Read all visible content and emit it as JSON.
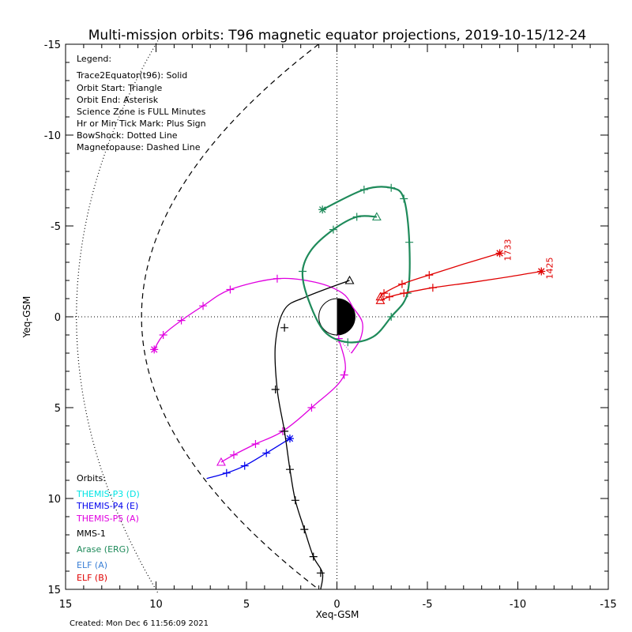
{
  "chart_data": {
    "type": "line",
    "title": "Multi-mission orbits: T96 magnetic equator projections, 2019-10-15/12-24",
    "xlabel": "Xeq-GSM",
    "ylabel": "Yeq-GSM",
    "xlim": [
      15,
      -15
    ],
    "ylim": [
      -15,
      15
    ],
    "x_ticks": [
      15,
      10,
      5,
      0,
      -5,
      -10,
      -15
    ],
    "y_ticks": [
      -15,
      -10,
      -5,
      0,
      5,
      10,
      15
    ],
    "legend": {
      "title": "Legend:",
      "items": [
        "Trace2Equator(t96): Solid",
        "Orbit Start: Triangle",
        "Orbit End: Asterisk",
        "Science Zone is FULL Minutes",
        "Hr or Min Tick Mark: Plus Sign",
        "BowShock: Dotted Line",
        "Magnetopause: Dashed Line"
      ]
    },
    "orbits_legend": {
      "title": "Orbits:",
      "items": [
        {
          "label": "THEMIS-P3 (D)",
          "color": "#00e5e5"
        },
        {
          "label": "THEMIS-P4 (E)",
          "color": "#0000ee"
        },
        {
          "label": "THEMIS-P5 (A)",
          "color": "#e000e0"
        },
        {
          "label": "MMS-1",
          "color": "#000000"
        },
        {
          "label": "Arase (ERG)",
          "color": "#1e8a5a"
        },
        {
          "label": "ELF (A)",
          "color": "#3a7fd6"
        },
        {
          "label": "ELF (B)",
          "color": "#e00000"
        }
      ]
    },
    "created": "Created: Mon Dec  6 11:56:09 2021",
    "series": [
      {
        "name": "THEMIS-P5 (A)",
        "color": "#e000e0",
        "x": [
          10.1,
          9.6,
          8.6,
          7.4,
          5.9,
          3.3,
          1.2,
          -0.3,
          -0.9,
          -1.4,
          -1.3,
          -0.8
        ],
        "y": [
          1.8,
          1.0,
          0.2,
          -0.6,
          -1.5,
          -2.1,
          -1.9,
          -1.3,
          -0.5,
          0.3,
          1.2,
          2.0
        ],
        "x2": [
          -0.1,
          -0.4,
          1.4,
          3.0,
          4.5,
          5.7,
          6.4
        ],
        "y2": [
          1.2,
          3.2,
          5.0,
          6.3,
          7.0,
          7.6,
          8.0
        ],
        "ticks": [
          [
            9.6,
            1.0
          ],
          [
            8.6,
            0.2
          ],
          [
            7.4,
            -0.6
          ],
          [
            5.9,
            -1.5
          ],
          [
            3.3,
            -2.1
          ],
          [
            -0.1,
            1.2
          ],
          [
            -0.4,
            3.2
          ],
          [
            1.4,
            5.0
          ],
          [
            3.0,
            6.3
          ],
          [
            4.5,
            7.0
          ],
          [
            5.7,
            7.6
          ]
        ],
        "start": [
          6.4,
          8.0
        ],
        "end": [
          10.1,
          1.8
        ]
      },
      {
        "name": "THEMIS-P4 (E)",
        "color": "#0000ee",
        "x": [
          7.2,
          6.1,
          5.1,
          3.9,
          2.6
        ],
        "y": [
          8.9,
          8.6,
          8.2,
          7.5,
          6.7
        ],
        "ticks": [
          [
            6.1,
            8.6
          ],
          [
            5.1,
            8.2
          ],
          [
            3.9,
            7.5
          ]
        ],
        "end": [
          2.6,
          6.7
        ]
      },
      {
        "name": "MMS-1",
        "color": "#000000",
        "x": [
          -0.7,
          1.7,
          2.9,
          3.4,
          3.3,
          2.9,
          2.6,
          2.3,
          1.8,
          1.3,
          0.8,
          0.9
        ],
        "y": [
          -2.0,
          -1.1,
          -0.4,
          1.5,
          4.0,
          6.3,
          8.4,
          10.1,
          11.7,
          13.2,
          14.1,
          15.0
        ],
        "ticks": [
          [
            2.9,
            0.6
          ],
          [
            3.4,
            4.0
          ],
          [
            2.9,
            6.3
          ],
          [
            2.6,
            8.4
          ],
          [
            2.3,
            10.1
          ],
          [
            1.8,
            11.7
          ],
          [
            1.3,
            13.2
          ],
          [
            0.9,
            14.1
          ]
        ],
        "start": [
          -0.7,
          -2.0
        ]
      },
      {
        "name": "Arase (ERG)",
        "color": "#1e8a5a",
        "x": [
          -2.2,
          -1.1,
          0.2,
          1.4,
          1.9,
          1.6,
          0.7,
          -0.6,
          -2.0,
          -3.0,
          -3.9,
          -4.0,
          -3.7,
          -3.0,
          -1.5,
          0.8
        ],
        "y": [
          -5.5,
          -5.5,
          -4.8,
          -3.7,
          -2.5,
          -1.0,
          0.8,
          1.4,
          1.1,
          0.0,
          -1.3,
          -4.1,
          -6.5,
          -7.1,
          -7.0,
          -5.9
        ],
        "ticks": [
          [
            -1.1,
            -5.5
          ],
          [
            0.2,
            -4.8
          ],
          [
            1.9,
            -2.5
          ],
          [
            -0.6,
            1.4
          ],
          [
            -3.0,
            0.0
          ],
          [
            -3.9,
            -1.3
          ],
          [
            -4.0,
            -4.1
          ],
          [
            -3.7,
            -6.5
          ],
          [
            -3.0,
            -7.1
          ],
          [
            -1.5,
            -7.0
          ]
        ],
        "start": [
          -2.2,
          -5.5
        ],
        "end": [
          0.8,
          -5.9
        ]
      },
      {
        "name": "ELF (B) 1733",
        "color": "#e00000",
        "x": [
          -2.4,
          -2.6,
          -3.6,
          -5.1,
          -7.0,
          -9.0
        ],
        "y": [
          -1.1,
          -1.3,
          -1.8,
          -2.3,
          -2.9,
          -3.5
        ],
        "ticks": [
          [
            -2.6,
            -1.3
          ],
          [
            -3.6,
            -1.8
          ],
          [
            -5.1,
            -2.3
          ]
        ],
        "start": [
          -2.4,
          -1.1
        ],
        "end": [
          -9.0,
          -3.5
        ],
        "label": "1733"
      },
      {
        "name": "ELF (B) 1425",
        "color": "#e00000",
        "x": [
          -2.4,
          -2.9,
          -3.7,
          -5.3,
          -7.5,
          -9.5,
          -11.3
        ],
        "y": [
          -0.9,
          -1.1,
          -1.3,
          -1.6,
          -1.9,
          -2.2,
          -2.5
        ],
        "ticks": [
          [
            -2.9,
            -1.1
          ],
          [
            -3.7,
            -1.3
          ],
          [
            -5.3,
            -1.6
          ]
        ],
        "start": [
          -2.4,
          -0.9
        ],
        "end": [
          -11.3,
          -2.5
        ],
        "label": "1425"
      }
    ]
  }
}
